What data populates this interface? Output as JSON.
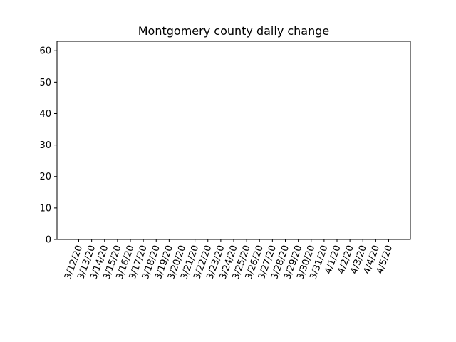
{
  "chart_data": {
    "type": "bar",
    "title": "Montgomery county daily change",
    "xlabel": "",
    "ylabel": "",
    "categories": [
      "3/12/20",
      "3/13/20",
      "3/14/20",
      "3/15/20",
      "3/16/20",
      "3/17/20",
      "3/18/20",
      "3/19/20",
      "3/20/20",
      "3/21/20",
      "3/22/20",
      "3/23/20",
      "3/24/20",
      "3/25/20",
      "3/26/20",
      "3/27/20",
      "3/28/20",
      "3/29/20",
      "3/30/20",
      "3/31/20",
      "4/1/20",
      "4/2/20",
      "4/3/20",
      "4/4/20",
      "4/5/20"
    ],
    "values": [
      0,
      0,
      0,
      0,
      0,
      0,
      0,
      0,
      0,
      0,
      0,
      0,
      0,
      0,
      0,
      0,
      0,
      0,
      0,
      0,
      0,
      0,
      0,
      0,
      0
    ],
    "ylim": [
      0,
      63
    ],
    "yticks": [
      0,
      10,
      20,
      30,
      40,
      50,
      60
    ],
    "grid": false,
    "legend": "none"
  }
}
